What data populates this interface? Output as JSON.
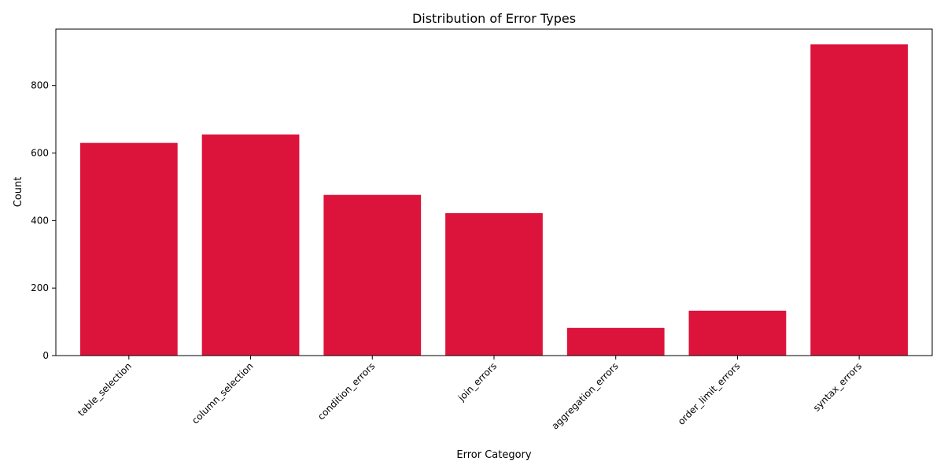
{
  "chart_data": {
    "type": "bar",
    "title": "Distribution of Error Types",
    "xlabel": "Error Category",
    "ylabel": "Count",
    "categories": [
      "table_selection",
      "column_selection",
      "condition_errors",
      "join_errors",
      "aggregation_errors",
      "order_limit_errors",
      "syntax_errors"
    ],
    "values": [
      630,
      655,
      476,
      422,
      82,
      133,
      922
    ],
    "ylim": [
      0,
      967.1
    ],
    "yticks": [
      0,
      200,
      400,
      600,
      800
    ],
    "bar_color": "#DC143C",
    "grid": false
  }
}
